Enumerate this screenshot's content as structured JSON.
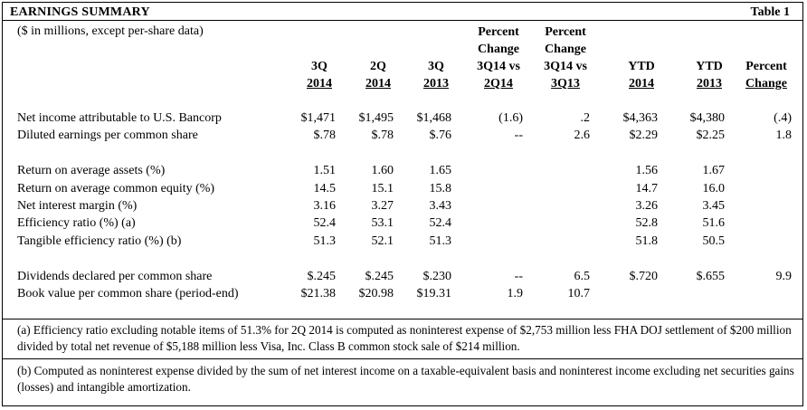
{
  "header": {
    "title": "EARNINGS SUMMARY",
    "table_number": "Table 1",
    "subtitle": "($ in millions, except per-share data)"
  },
  "columns": [
    {
      "line1": "",
      "line2": "",
      "line3": "3Q",
      "line4": "2014"
    },
    {
      "line1": "",
      "line2": "",
      "line3": "2Q",
      "line4": "2014"
    },
    {
      "line1": "",
      "line2": "",
      "line3": "3Q",
      "line4": "2013"
    },
    {
      "line1": "Percent",
      "line2": "Change",
      "line3": "3Q14 vs",
      "line4": "2Q14"
    },
    {
      "line1": "Percent",
      "line2": "Change",
      "line3": "3Q14 vs",
      "line4": "3Q13"
    },
    {
      "line1": "",
      "line2": "",
      "line3": "YTD",
      "line4": "2014"
    },
    {
      "line1": "",
      "line2": "",
      "line3": "YTD",
      "line4": "2013"
    },
    {
      "line1": "",
      "line2": "",
      "line3": "Percent",
      "line4": "Change"
    }
  ],
  "rows": [
    {
      "label": "Net income attributable to U.S. Bancorp",
      "values": [
        "$1,471",
        "$1,495",
        "$1,468",
        "(1.6)",
        ".2",
        "$4,363",
        "$4,380",
        "(.4)"
      ]
    },
    {
      "label": "Diluted earnings per common share",
      "values": [
        "$.78",
        "$.78",
        "$.76",
        "--",
        "2.6",
        "$2.29",
        "$2.25",
        "1.8"
      ]
    },
    {
      "label": "Return on average assets (%)",
      "values": [
        "1.51",
        "1.60",
        "1.65",
        "",
        "",
        "1.56",
        "1.67",
        ""
      ]
    },
    {
      "label": "Return on average common equity (%)",
      "values": [
        "14.5",
        "15.1",
        "15.8",
        "",
        "",
        "14.7",
        "16.0",
        ""
      ]
    },
    {
      "label": "Net interest margin (%)",
      "values": [
        "3.16",
        "3.27",
        "3.43",
        "",
        "",
        "3.26",
        "3.45",
        ""
      ]
    },
    {
      "label": "Efficiency ratio (%) (a)",
      "values": [
        "52.4",
        "53.1",
        "52.4",
        "",
        "",
        "52.8",
        "51.6",
        ""
      ]
    },
    {
      "label": "Tangible efficiency ratio (%) (b)",
      "values": [
        "51.3",
        "52.1",
        "51.3",
        "",
        "",
        "51.8",
        "50.5",
        ""
      ]
    },
    {
      "label": "Dividends declared per common share",
      "values": [
        "$.245",
        "$.245",
        "$.230",
        "--",
        "6.5",
        "$.720",
        "$.655",
        "9.9"
      ]
    },
    {
      "label": "Book value per common share (period-end)",
      "values": [
        "$21.38",
        "$20.98",
        "$19.31",
        "1.9",
        "10.7",
        "",
        "",
        ""
      ]
    }
  ],
  "footnotes": [
    {
      "text": "(a) Efficiency ratio excluding notable items of 51.3% for 2Q 2014 is computed as noninterest expense of $2,753 million less FHA DOJ settlement of $200 million divided by total net revenue of $5,188 million less Visa, Inc. Class B common stock sale of $214 million."
    },
    {
      "text": "(b) Computed as noninterest expense divided by the sum of net interest income on a taxable-equivalent basis and noninterest income excluding net securities gains (losses) and intangible amortization."
    }
  ]
}
